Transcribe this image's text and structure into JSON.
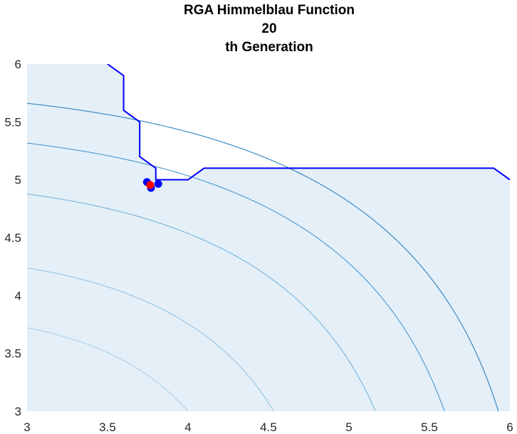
{
  "chart_data": {
    "type": "line",
    "title_lines": [
      "RGA Himmelblau Function",
      "20",
      "th Generation"
    ],
    "xlabel": "",
    "ylabel": "",
    "xlim": [
      3,
      6
    ],
    "ylim": [
      3,
      6
    ],
    "x_ticks": [
      3,
      3.5,
      4,
      4.5,
      5,
      5.5,
      6
    ],
    "x_tick_labels": [
      "3",
      "3.5",
      "4",
      "4.5",
      "5",
      "5.5",
      "6"
    ],
    "y_ticks": [
      3,
      3.5,
      4,
      4.5,
      5,
      5.5,
      6
    ],
    "y_tick_labels": [
      "3",
      "3.5",
      "4",
      "4.5",
      "5",
      "5.5",
      "6"
    ],
    "grid": false,
    "contour": {
      "function": "(x^2 + y - 11)^2 + (x + y^2 - 7)^2",
      "levels": [
        100,
        200,
        400,
        600,
        800
      ],
      "colors": [
        "#a9cfe8",
        "#8dc0e2",
        "#6faed9",
        "#3f8fc6",
        "#1f77b4"
      ]
    },
    "fill_region": {
      "color": "#e4eff8",
      "boundary": [
        [
          3.5,
          6.0
        ],
        [
          3.6,
          5.9
        ],
        [
          3.6,
          5.6
        ],
        [
          3.7,
          5.5
        ],
        [
          3.7,
          5.2
        ],
        [
          3.8,
          5.1
        ],
        [
          3.8,
          5.0
        ],
        [
          4.0,
          5.0
        ],
        [
          4.1,
          5.1
        ],
        [
          5.9,
          5.1
        ],
        [
          6.0,
          5.0
        ]
      ]
    },
    "series": [
      {
        "type": "line",
        "color": "#0000ff",
        "x": [
          3.5,
          3.6,
          3.6,
          3.7,
          3.7,
          3.8,
          3.8,
          4.0,
          4.1,
          5.9,
          6.0
        ],
        "y": [
          6.0,
          5.9,
          5.6,
          5.5,
          5.2,
          5.1,
          5.0,
          5.0,
          5.1,
          5.1,
          5.0
        ]
      },
      {
        "type": "scatter",
        "color": "#0000ff",
        "x": [
          3.745,
          3.77,
          3.815
        ],
        "y": [
          4.98,
          4.93,
          4.965
        ]
      },
      {
        "type": "scatter",
        "color": "#ff0000",
        "x": [
          3.765
        ],
        "y": [
          4.955
        ]
      }
    ]
  }
}
